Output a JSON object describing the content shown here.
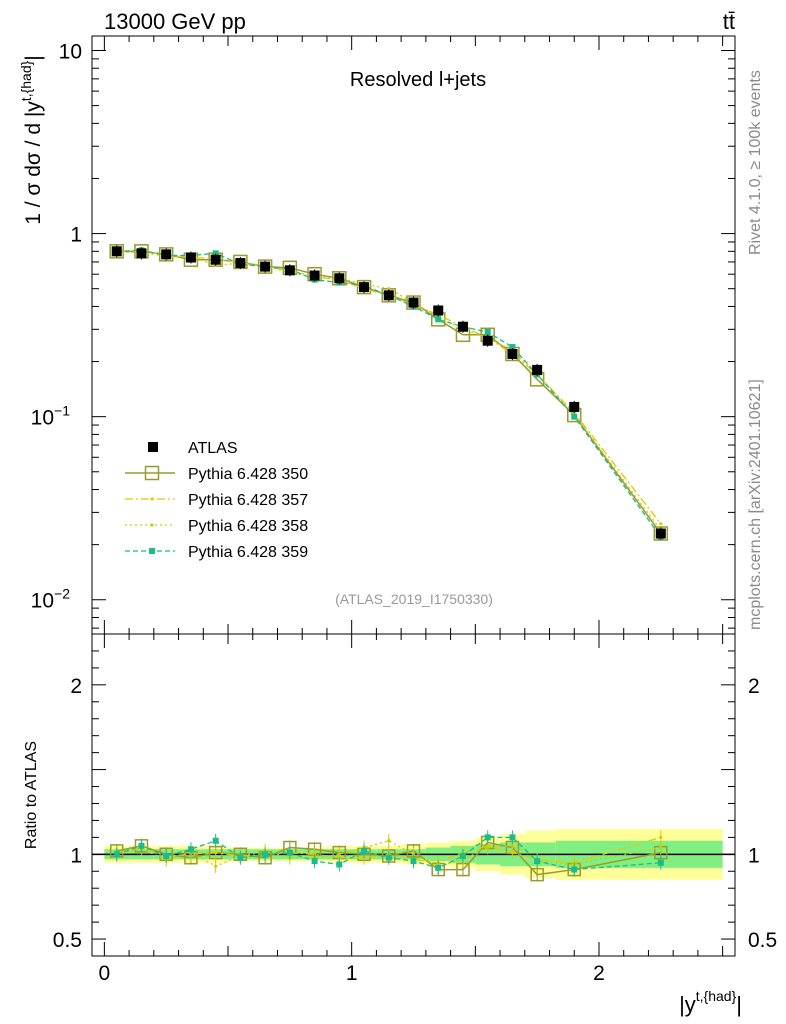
{
  "header": {
    "energy_label": "13000 GeV pp",
    "process_label": "tt̄"
  },
  "side": {
    "rivet": "Rivet 4.1.0, ≥ 100k events",
    "mcplots": "mcplots.cern.ch [arXiv:2401.10621]"
  },
  "colors": {
    "atlas": "#000000",
    "p350": "#9a9a2c",
    "p357": "#e6c800",
    "p358": "#cccc00",
    "p359": "#1abc8a",
    "band_outer": "#ffff99",
    "band_inner": "#80ee80"
  },
  "chart_data": [
    {
      "type": "line",
      "title": "Resolved l+jets",
      "watermark": "(ATLAS_2019_I1750330)",
      "ylabel": "1 / σ dσ / d |y^{t,{had}}|",
      "yscale": "log",
      "ylim": [
        0.0065,
        12
      ],
      "xlim": [
        -0.05,
        2.55
      ],
      "yticks": [
        {
          "value": 10,
          "label": "10"
        },
        {
          "value": 1,
          "label": "1"
        },
        {
          "value": 0.1,
          "label": "10",
          "sup": "−1"
        },
        {
          "value": 0.01,
          "label": "10",
          "sup": "−2"
        }
      ],
      "x": [
        0.05,
        0.15,
        0.25,
        0.35,
        0.45,
        0.55,
        0.65,
        0.75,
        0.85,
        0.95,
        1.05,
        1.15,
        1.25,
        1.35,
        1.45,
        1.55,
        1.65,
        1.75,
        1.9,
        2.25
      ],
      "series": [
        {
          "name": "ATLAS",
          "style": "data",
          "values": [
            0.8,
            0.78,
            0.77,
            0.74,
            0.72,
            0.69,
            0.66,
            0.63,
            0.59,
            0.57,
            0.51,
            0.46,
            0.42,
            0.38,
            0.31,
            0.26,
            0.22,
            0.18,
            0.113,
            0.023
          ]
        },
        {
          "name": "Pythia 6.428 350",
          "style": "open-square",
          "values": [
            0.8,
            0.8,
            0.77,
            0.72,
            0.72,
            0.7,
            0.66,
            0.65,
            0.6,
            0.57,
            0.51,
            0.46,
            0.42,
            0.34,
            0.28,
            0.28,
            0.22,
            0.16,
            0.102,
            0.023
          ]
        },
        {
          "name": "Pythia 6.428 357",
          "style": "dashdot",
          "values": [
            0.79,
            0.8,
            0.77,
            0.74,
            0.73,
            0.69,
            0.66,
            0.63,
            0.58,
            0.56,
            0.5,
            0.46,
            0.41,
            0.36,
            0.31,
            0.27,
            0.22,
            0.17,
            0.105,
            0.026
          ]
        },
        {
          "name": "Pythia 6.428 358",
          "style": "dotted",
          "values": [
            0.79,
            0.79,
            0.75,
            0.75,
            0.67,
            0.69,
            0.67,
            0.61,
            0.58,
            0.57,
            0.53,
            0.5,
            0.42,
            0.35,
            0.3,
            0.27,
            0.23,
            0.17,
            0.103,
            0.024
          ]
        },
        {
          "name": "Pythia 6.428 359",
          "style": "dashed-square",
          "values": [
            0.8,
            0.81,
            0.76,
            0.76,
            0.78,
            0.68,
            0.66,
            0.64,
            0.56,
            0.54,
            0.52,
            0.46,
            0.4,
            0.34,
            0.31,
            0.29,
            0.24,
            0.17,
            0.1,
            0.022
          ]
        }
      ]
    },
    {
      "type": "line",
      "ylabel": "Ratio to ATLAS",
      "xlabel": "|y^{t,{had}}|",
      "ylim": [
        0.4,
        2.3
      ],
      "xlim": [
        -0.05,
        2.55
      ],
      "yticks": [
        {
          "value": 2,
          "label": "2"
        },
        {
          "value": 1,
          "label": "1"
        },
        {
          "value": 0.5,
          "label": "0.5"
        }
      ],
      "xticks": [
        {
          "value": 0,
          "label": "0"
        },
        {
          "value": 1,
          "label": "1"
        },
        {
          "value": 2,
          "label": "2"
        }
      ],
      "x": [
        0.05,
        0.15,
        0.25,
        0.35,
        0.45,
        0.55,
        0.65,
        0.75,
        0.85,
        0.95,
        1.05,
        1.15,
        1.25,
        1.35,
        1.45,
        1.55,
        1.65,
        1.75,
        1.9,
        2.25
      ],
      "band_outer": [
        0.05,
        0.05,
        0.05,
        0.05,
        0.05,
        0.04,
        0.04,
        0.04,
        0.04,
        0.05,
        0.05,
        0.05,
        0.06,
        0.07,
        0.08,
        0.1,
        0.12,
        0.14,
        0.15,
        0.15
      ],
      "band_inner": [
        0.03,
        0.03,
        0.03,
        0.03,
        0.03,
        0.03,
        0.03,
        0.03,
        0.03,
        0.03,
        0.03,
        0.03,
        0.03,
        0.04,
        0.05,
        0.06,
        0.07,
        0.07,
        0.08,
        0.08
      ],
      "series": [
        {
          "name": "Pythia 6.428 350",
          "style": "open-square",
          "values": [
            1.02,
            1.05,
            1.0,
            0.98,
            1.01,
            1.0,
            0.98,
            1.04,
            1.03,
            1.01,
            1.0,
            0.99,
            1.02,
            0.91,
            0.91,
            1.07,
            1.04,
            0.88,
            0.91,
            1.01
          ]
        },
        {
          "name": "Pythia 6.428 357",
          "style": "dashdot",
          "values": [
            1.0,
            1.04,
            0.99,
            1.0,
            1.01,
            0.99,
            1.0,
            1.01,
            1.0,
            0.98,
            0.98,
            1.0,
            0.97,
            0.95,
            1.01,
            1.05,
            1.01,
            0.97,
            0.95,
            1.1
          ]
        },
        {
          "name": "Pythia 6.428 358",
          "style": "dotted",
          "values": [
            1.01,
            1.03,
            0.97,
            1.01,
            0.93,
            0.99,
            1.02,
            0.98,
            0.98,
            1.0,
            1.04,
            1.08,
            1.0,
            0.93,
            0.97,
            1.04,
            1.05,
            0.96,
            0.94,
            1.04
          ]
        },
        {
          "name": "Pythia 6.428 359",
          "style": "dashed-square",
          "values": [
            1.0,
            1.05,
            0.99,
            1.03,
            1.08,
            0.98,
            1.0,
            1.01,
            0.96,
            0.94,
            1.02,
            0.98,
            0.96,
            0.92,
            0.99,
            1.1,
            1.1,
            0.96,
            0.91,
            0.95
          ]
        }
      ]
    }
  ]
}
